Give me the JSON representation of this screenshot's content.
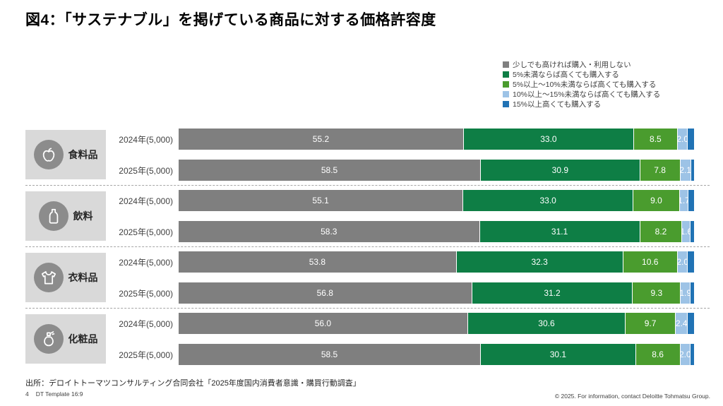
{
  "title": "図4：「サステナブル」を掲げている商品に対する価格許容度",
  "legend": {
    "items": [
      {
        "label": "少しでも高ければ購入・利用しない",
        "color": "#7f7f7f"
      },
      {
        "label": "5%未満ならば高くても購入する",
        "color": "#0e7e45"
      },
      {
        "label": "5%以上～10%未満ならば高くても購入する",
        "color": "#4a9c2e"
      },
      {
        "label": "10%以上～15%未満ならば高くても購入する",
        "color": "#9dc3e6"
      },
      {
        "label": "15%以上高くても購入する",
        "color": "#2173b5"
      }
    ]
  },
  "chart_data": {
    "type": "bar",
    "orientation": "horizontal-stacked",
    "unit": "%",
    "xlim": [
      0,
      100
    ],
    "label_min_display": 1.5,
    "series_labels": [
      "少しでも高ければ購入・利用しない",
      "5%未満ならば高くても購入する",
      "5%以上～10%未満ならば高くても購入する",
      "10%以上～15%未満ならば高くても購入する",
      "15%以上高くても購入する"
    ],
    "colors": [
      "#7f7f7f",
      "#0e7e45",
      "#4a9c2e",
      "#9dc3e6",
      "#2173b5"
    ],
    "note": "5th segment has no data label in the chart; its value is the remainder to 100%",
    "groups": [
      {
        "category": "食料品",
        "icon": "apple-icon",
        "rows": [
          {
            "label": "2024年(5,000)",
            "values": [
              55.2,
              33.0,
              8.5,
              2.0,
              1.3
            ]
          },
          {
            "label": "2025年(5,000)",
            "values": [
              58.5,
              30.9,
              7.8,
              2.1,
              0.7
            ]
          }
        ]
      },
      {
        "category": "飲料",
        "icon": "bottle-icon",
        "rows": [
          {
            "label": "2024年(5,000)",
            "values": [
              55.1,
              33.0,
              9.0,
              1.7,
              1.2
            ]
          },
          {
            "label": "2025年(5,000)",
            "values": [
              58.3,
              31.1,
              8.2,
              1.6,
              0.8
            ]
          }
        ]
      },
      {
        "category": "衣料品",
        "icon": "tshirt-icon",
        "rows": [
          {
            "label": "2024年(5,000)",
            "values": [
              53.8,
              32.3,
              10.6,
              2.0,
              1.3
            ]
          },
          {
            "label": "2025年(5,000)",
            "values": [
              56.8,
              31.2,
              9.3,
              1.9,
              0.8
            ]
          }
        ]
      },
      {
        "category": "化粧品",
        "icon": "cosmetics-icon",
        "rows": [
          {
            "label": "2024年(5,000)",
            "values": [
              56.0,
              30.6,
              9.7,
              2.4,
              1.3
            ]
          },
          {
            "label": "2025年(5,000)",
            "values": [
              58.5,
              30.1,
              8.6,
              2.0,
              0.8
            ]
          }
        ]
      }
    ]
  },
  "footer": {
    "source": "出所：デロイトトーマツコンサルティング合同会社「2025年度国内消費者意識・購買行動調査」",
    "page_number": "4",
    "template": "DT Template 16:9",
    "copyright": "© 2025. For information, contact Deloitte Tohmatsu Group."
  }
}
